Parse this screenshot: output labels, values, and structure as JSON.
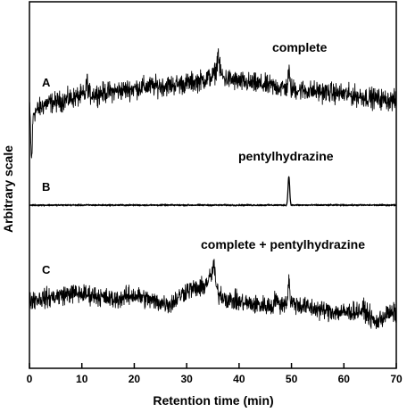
{
  "chart_data": {
    "type": "line",
    "title": "",
    "xlabel": "Retention time (min)",
    "ylabel": "Arbitrary scale",
    "xlim": [
      0,
      70
    ],
    "x_ticks": [
      0,
      10,
      20,
      30,
      40,
      50,
      60,
      70
    ],
    "grid": false,
    "legend": "none",
    "line_color": "#000000",
    "series": [
      {
        "panel": "A",
        "name": "complete",
        "noise": 0.9,
        "points": [
          [
            0,
            2.0
          ],
          [
            1,
            1.0
          ],
          [
            3,
            2.5
          ],
          [
            6,
            3.0
          ],
          [
            10,
            4.0
          ],
          [
            14,
            4.5
          ],
          [
            18,
            5.0
          ],
          [
            22,
            5.6
          ],
          [
            26,
            5.8
          ],
          [
            30,
            6.2
          ],
          [
            33,
            6.8
          ],
          [
            35,
            7.5
          ],
          [
            36,
            9.0
          ],
          [
            37,
            7.2
          ],
          [
            40,
            6.5
          ],
          [
            44,
            6.0
          ],
          [
            48,
            5.5
          ],
          [
            50,
            5.2
          ],
          [
            54,
            4.8
          ],
          [
            58,
            4.5
          ],
          [
            62,
            4.0
          ],
          [
            66,
            3.5
          ],
          [
            70,
            3.0
          ]
        ],
        "spikes": [
          [
            11,
            2.5
          ],
          [
            36,
            3.0
          ],
          [
            49.5,
            3.0
          ],
          [
            0.4,
            -9.0
          ]
        ]
      },
      {
        "panel": "B",
        "name": "pentylhydrazine",
        "noise": 0.12,
        "points": [
          [
            0,
            0
          ],
          [
            70,
            0
          ]
        ],
        "spikes": [
          [
            49.5,
            9.5
          ]
        ]
      },
      {
        "panel": "C",
        "name": "complete + pentylhydrazine",
        "noise": 1.1,
        "points": [
          [
            0,
            2.5
          ],
          [
            4,
            3.0
          ],
          [
            8,
            4.0
          ],
          [
            12,
            3.6
          ],
          [
            16,
            2.5
          ],
          [
            20,
            3.6
          ],
          [
            24,
            2.0
          ],
          [
            27,
            1.5
          ],
          [
            30,
            4.8
          ],
          [
            33,
            5.2
          ],
          [
            35,
            8.5
          ],
          [
            36,
            4.0
          ],
          [
            38,
            2.5
          ],
          [
            42,
            1.5
          ],
          [
            46,
            1.0
          ],
          [
            49.5,
            2.0
          ],
          [
            52,
            1.0
          ],
          [
            56,
            0.0
          ],
          [
            60,
            -0.5
          ],
          [
            64,
            0.0
          ],
          [
            66,
            -3.0
          ],
          [
            68,
            -1.0
          ],
          [
            70,
            -0.5
          ]
        ],
        "spikes": [
          [
            49.5,
            5.0
          ],
          [
            35.2,
            3.0
          ],
          [
            47,
            2.0
          ]
        ]
      }
    ]
  }
}
